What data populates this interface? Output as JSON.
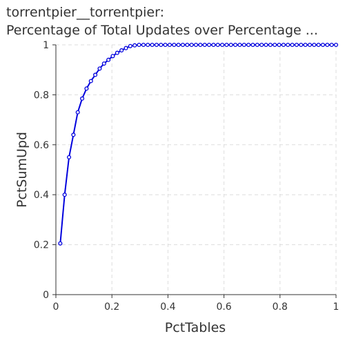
{
  "chart_data": {
    "type": "line",
    "title_line1": "torrentpier__torrentpier:",
    "title_line2": "Percentage of Total Updates over Percentage ...",
    "xlabel": "PctTables",
    "ylabel": "PctSumUpd",
    "xlim": [
      0,
      1
    ],
    "ylim": [
      0,
      1
    ],
    "xticks": [
      "0",
      "0.2",
      "0.4",
      "0.6",
      "0.8",
      "1"
    ],
    "yticks": [
      "0",
      "0.2",
      "0.4",
      "0.6",
      "0.8",
      "1"
    ],
    "grid": true,
    "line_color": "#0000dd",
    "series": [
      {
        "x": [
          0.0156,
          0.0313,
          0.0469,
          0.0625,
          0.0781,
          0.0938,
          0.1094,
          0.125,
          0.1406,
          0.1563,
          0.1719,
          0.1875,
          0.2031,
          0.2188,
          0.2344,
          0.25,
          0.2656,
          0.2813,
          0.2969,
          0.3125,
          0.3281,
          0.3438,
          0.3594,
          0.375,
          0.3906,
          0.4063,
          0.4219,
          0.4375,
          0.4531,
          0.4688,
          0.4844,
          0.5,
          0.5156,
          0.5313,
          0.5469,
          0.5625,
          0.5781,
          0.5938,
          0.6094,
          0.625,
          0.6406,
          0.6563,
          0.6719,
          0.6875,
          0.7031,
          0.7188,
          0.7344,
          0.75,
          0.7656,
          0.7813,
          0.7969,
          0.8125,
          0.8281,
          0.8438,
          0.8594,
          0.875,
          0.8906,
          0.9063,
          0.9219,
          0.9375,
          0.9531,
          0.9688,
          0.9844,
          1.0
        ],
        "y": [
          0.205,
          0.4,
          0.55,
          0.64,
          0.73,
          0.785,
          0.825,
          0.855,
          0.88,
          0.905,
          0.925,
          0.94,
          0.955,
          0.968,
          0.978,
          0.987,
          0.995,
          0.998,
          1,
          1,
          1,
          1,
          1,
          1,
          1,
          1,
          1,
          1,
          1,
          1,
          1,
          1,
          1,
          1,
          1,
          1,
          1,
          1,
          1,
          1,
          1,
          1,
          1,
          1,
          1,
          1,
          1,
          1,
          1,
          1,
          1,
          1,
          1,
          1,
          1,
          1,
          1,
          1,
          1,
          1,
          1,
          1,
          1,
          1
        ]
      }
    ]
  }
}
